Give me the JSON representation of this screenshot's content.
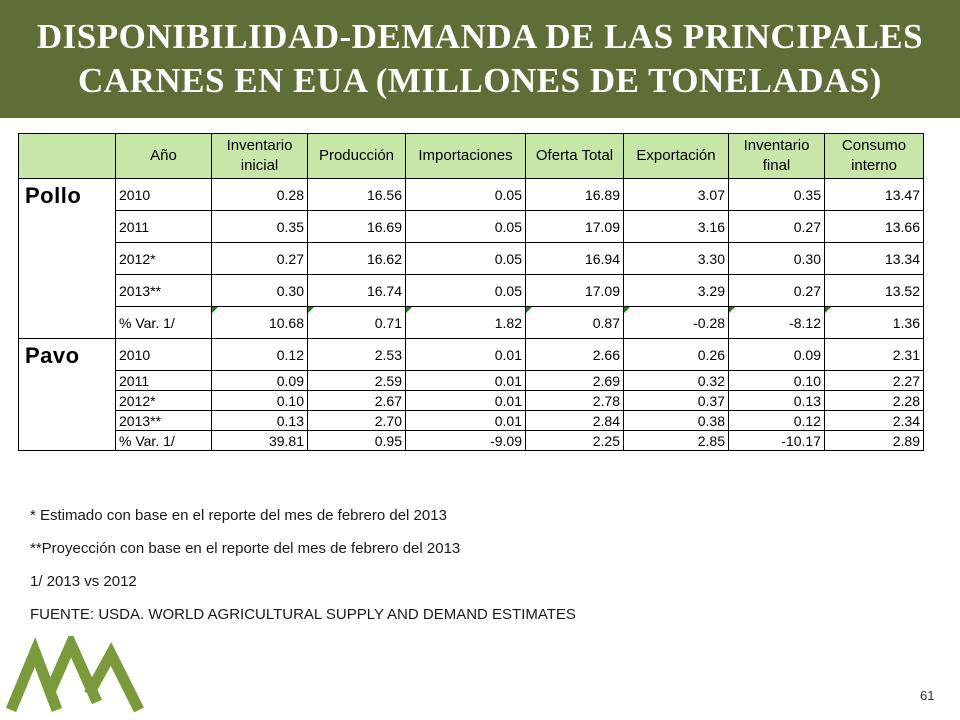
{
  "title": {
    "line1": "DISPONIBILIDAD-DEMANDA DE LAS PRINCIPALES",
    "line2": "CARNES EN EUA (MILLONES DE TONELADAS)"
  },
  "table": {
    "headers": [
      "",
      "Año",
      "Inventario inicial",
      "Producción",
      "Importaciones",
      "Oferta Total",
      "Exportación",
      "Inventario final",
      "Consumo interno"
    ],
    "groups": [
      {
        "name": "Pollo",
        "rows": [
          [
            "2010",
            "0.28",
            "16.56",
            "0.05",
            "16.89",
            "3.07",
            "0.35",
            "13.47"
          ],
          [
            "2011",
            "0.35",
            "16.69",
            "0.05",
            "17.09",
            "3.16",
            "0.27",
            "13.66"
          ],
          [
            "2012*",
            "0.27",
            "16.62",
            "0.05",
            "16.94",
            "3.30",
            "0.30",
            "13.34"
          ],
          [
            "2013**",
            "0.30",
            "16.74",
            "0.05",
            "17.09",
            "3.29",
            "0.27",
            "13.52"
          ],
          [
            "% Var. 1/",
            "10.68",
            "0.71",
            "1.82",
            "0.87",
            "-0.28",
            "-8.12",
            "1.36"
          ]
        ]
      },
      {
        "name": "Pavo",
        "rows": [
          [
            "2010",
            "0.12",
            "2.53",
            "0.01",
            "2.66",
            "0.26",
            "0.09",
            "2.31"
          ],
          [
            "2011",
            "0.09",
            "2.59",
            "0.01",
            "2.69",
            "0.32",
            "0.10",
            "2.27"
          ],
          [
            "2012*",
            "0.10",
            "2.67",
            "0.01",
            "2.78",
            "0.37",
            "0.13",
            "2.28"
          ],
          [
            "2013**",
            "0.13",
            "2.70",
            "0.01",
            "2.84",
            "0.38",
            "0.12",
            "2.34"
          ],
          [
            "% Var. 1/",
            "39.81",
            "0.95",
            "-9.09",
            "2.25",
            "2.85",
            "-10.17",
            "2.89"
          ]
        ]
      }
    ]
  },
  "footnotes": [
    "* Estimado con base en el reporte del mes de febrero del 2013",
    "**Proyección con base en el reporte del mes de febrero del 2013",
    "1/ 2013 vs 2012",
    "FUENTE: USDA. WORLD AGRICULTURAL SUPPLY AND DEMAND ESTIMATES"
  ],
  "page_number": "61",
  "colors": {
    "title_bar": "#5f6e36",
    "header_fill": "#c8e6a8",
    "logo_green": "#7b9a3c",
    "flag_green": "#1e7a1e"
  }
}
